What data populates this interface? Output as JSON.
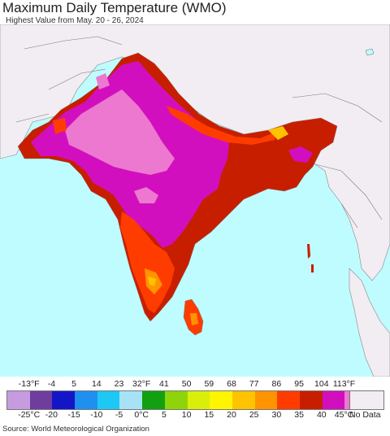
{
  "header": {
    "title": "Maximum Daily Temperature (WMO)",
    "subtitle": "Highest Value from May. 20 - 26, 2024"
  },
  "legend": {
    "fahrenheit_ticks": [
      "-13°F",
      "-4",
      "5",
      "14",
      "23",
      "32°F",
      "41",
      "50",
      "59",
      "68",
      "77",
      "86",
      "95",
      "104",
      "113°F"
    ],
    "celsius_ticks": [
      "-25°C",
      "-20",
      "-15",
      "-10",
      "-5",
      "0°C",
      "5",
      "10",
      "15",
      "20",
      "25",
      "30",
      "35",
      "40",
      "45°C"
    ],
    "colors": [
      "#c79be0",
      "#6e3d9e",
      "#1515c8",
      "#1f8ff0",
      "#1ec8f5",
      "#a7e2f7",
      "#11a011",
      "#8fd40a",
      "#d9ef0a",
      "#fff500",
      "#ffc300",
      "#ff9400",
      "#ff3c00",
      "#c81e00",
      "#d20fbe",
      "#ec78cf"
    ],
    "no_data_label": "No Data",
    "no_data_color": "#f1edf2"
  },
  "footer": {
    "source": "Source: World Meteorological Organization"
  },
  "map": {
    "ocean_color": "#bffcff",
    "land_no_data_color": "#f1edf2"
  }
}
